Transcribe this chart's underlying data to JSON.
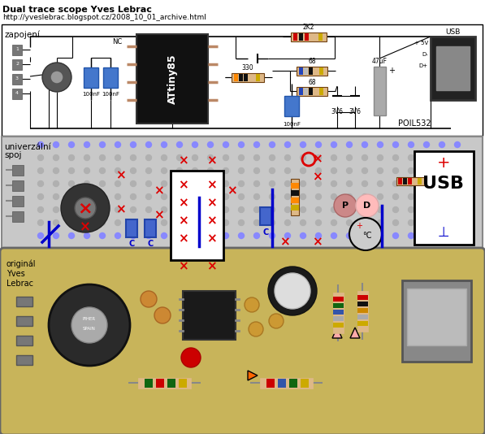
{
  "title_line1": "Dual trace scope Yves Lebrac",
  "title_line2": "http://yveslebrac.blogspot.cz/2008_10_01_archive.html",
  "section1_label": "zapojení",
  "section2_label1": "univerzální",
  "section2_label2": "spoj",
  "section3_label1": "originál",
  "section3_label2": "Yves",
  "section3_label3": "Lebrac",
  "ic_label": "ATtiny85",
  "nc_label": "NC",
  "poil_label": "POIL532",
  "usb_label": "USB",
  "usb_box_label": "USB",
  "plus5v": "+ 5V",
  "dm": "D-",
  "dp": "D+",
  "r2k2": "2K2",
  "r330": "330",
  "r68a": "68",
  "r68b": "68",
  "c100nf_a": "100nF",
  "c100nf_b": "100nF",
  "c100nf_c": "100nF",
  "c47uf": "47uF",
  "z3v6a": "3V6",
  "z3v6b": "3V6",
  "bg_color": "#ffffff",
  "red_color": "#dd0000",
  "blue_color": "#0000cc",
  "breadboard_color": "#c8c8c8",
  "pcb_color": "#c8b45a",
  "dot_color": "#b0b0b0",
  "dot_color_blue": "#8888ff"
}
